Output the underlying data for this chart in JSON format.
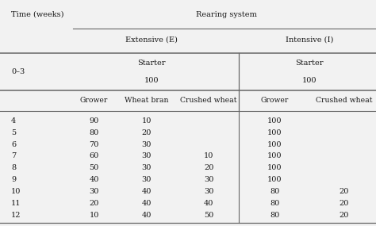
{
  "title_partial": "Rearing system",
  "col0_header": "Time (weeks)",
  "extensive_label": "Extensive (E)",
  "intensive_label": "Intensive (I)",
  "starter_row_label": "0–3",
  "sub_headers": [
    "Grower",
    "Wheat bran",
    "Crushed wheat",
    "Grower",
    "Crushed wheat"
  ],
  "rows": [
    {
      "week": "4",
      "e_grower": "90",
      "e_wheat": "10",
      "e_crushed": "",
      "i_grower": "100",
      "i_crushed": ""
    },
    {
      "week": "5",
      "e_grower": "80",
      "e_wheat": "20",
      "e_crushed": "",
      "i_grower": "100",
      "i_crushed": ""
    },
    {
      "week": "6",
      "e_grower": "70",
      "e_wheat": "30",
      "e_crushed": "",
      "i_grower": "100",
      "i_crushed": ""
    },
    {
      "week": "7",
      "e_grower": "60",
      "e_wheat": "30",
      "e_crushed": "10",
      "i_grower": "100",
      "i_crushed": ""
    },
    {
      "week": "8",
      "e_grower": "50",
      "e_wheat": "30",
      "e_crushed": "20",
      "i_grower": "100",
      "i_crushed": ""
    },
    {
      "week": "9",
      "e_grower": "40",
      "e_wheat": "30",
      "e_crushed": "30",
      "i_grower": "100",
      "i_crushed": ""
    },
    {
      "week": "10",
      "e_grower": "30",
      "e_wheat": "40",
      "e_crushed": "30",
      "i_grower": "80",
      "i_crushed": "20"
    },
    {
      "week": "11",
      "e_grower": "20",
      "e_wheat": "40",
      "e_crushed": "40",
      "i_grower": "80",
      "i_crushed": "20"
    },
    {
      "week": "12",
      "e_grower": "10",
      "e_wheat": "40",
      "e_crushed": "50",
      "i_grower": "80",
      "i_crushed": "20"
    }
  ],
  "bg_color": "#f2f2f2",
  "text_color": "#1a1a1a",
  "line_color": "#666666",
  "font_size": 7.0,
  "fig_width": 4.74,
  "fig_height": 2.85,
  "dpi": 100
}
